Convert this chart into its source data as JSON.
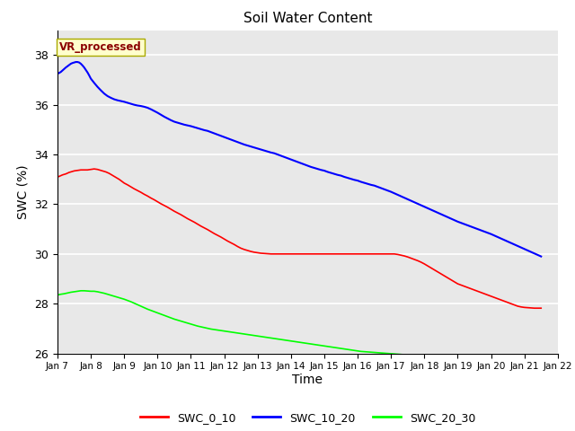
{
  "title": "Soil Water Content",
  "xlabel": "Time",
  "ylabel": "SWC (%)",
  "annotation": "VR_processed",
  "annotation_color": "#8B0000",
  "annotation_bg": "#FFFFCC",
  "ylim": [
    26,
    39
  ],
  "yticks": [
    26,
    28,
    30,
    32,
    34,
    36,
    38
  ],
  "x_labels": [
    "Jan 7",
    "Jan 8",
    "Jan 9",
    "Jan 10",
    "Jan 11",
    "Jan 12",
    "Jan 13",
    "Jan 14",
    "Jan 15",
    "Jan 16",
    "Jan 17",
    "Jan 18",
    "Jan 19",
    "Jan 20",
    "Jan 21",
    "Jan 22"
  ],
  "bg_color": "#E8E8E8",
  "fig_bg": "#FFFFFF",
  "line_colors": {
    "SWC_0_10": "#FF0000",
    "SWC_10_20": "#0000FF",
    "SWC_20_30": "#00FF00"
  },
  "SWC_0_10_x": [
    7.0,
    7.05,
    7.1,
    7.15,
    7.2,
    7.25,
    7.3,
    7.35,
    7.4,
    7.45,
    7.5,
    7.55,
    7.6,
    7.65,
    7.7,
    7.75,
    7.8,
    7.85,
    7.9,
    7.95,
    8.0,
    8.05,
    8.1,
    8.15,
    8.2,
    8.25,
    8.3,
    8.35,
    8.4,
    8.45,
    8.5,
    8.55,
    8.6,
    8.65,
    8.7,
    8.75,
    8.8,
    8.85,
    8.9,
    8.95,
    9.0,
    9.1,
    9.2,
    9.3,
    9.4,
    9.5,
    9.6,
    9.7,
    9.8,
    9.9,
    10.0,
    10.1,
    10.2,
    10.3,
    10.4,
    10.5,
    10.6,
    10.7,
    10.8,
    10.9,
    11.0,
    11.1,
    11.2,
    11.3,
    11.4,
    11.5,
    11.6,
    11.7,
    11.8,
    11.9,
    12.0,
    12.1,
    12.2,
    12.3,
    12.4,
    12.5,
    12.6,
    12.7,
    12.8,
    12.9,
    13.0,
    13.1,
    13.2,
    13.3,
    13.4,
    13.5,
    13.6,
    13.7,
    13.8,
    13.9,
    14.0,
    14.1,
    14.2,
    14.3,
    14.4,
    14.5,
    14.6,
    14.7,
    14.8,
    14.9,
    15.0,
    15.1,
    15.2,
    15.3,
    15.4,
    15.5,
    15.6,
    15.7,
    15.8,
    15.9,
    16.0,
    16.1,
    16.2,
    16.3,
    16.4,
    16.5,
    16.6,
    16.7,
    16.8,
    16.9,
    17.0,
    17.1,
    17.2,
    17.3,
    17.4,
    17.5,
    17.6,
    17.7,
    17.8,
    17.9,
    18.0,
    18.1,
    18.2,
    18.3,
    18.4,
    18.5,
    18.6,
    18.7,
    18.8,
    18.9,
    19.0,
    19.1,
    19.2,
    19.3,
    19.4,
    19.5,
    19.6,
    19.7,
    19.8,
    19.9,
    20.0,
    20.1,
    20.2,
    20.3,
    20.4,
    20.5,
    20.6,
    20.7,
    20.8,
    20.9,
    21.0,
    21.1,
    21.2,
    21.3,
    21.4,
    21.5
  ],
  "SWC_0_10_y": [
    33.1,
    33.12,
    33.15,
    33.18,
    33.2,
    33.22,
    33.25,
    33.28,
    33.3,
    33.32,
    33.34,
    33.35,
    33.36,
    33.37,
    33.38,
    33.38,
    33.38,
    33.38,
    33.38,
    33.39,
    33.4,
    33.41,
    33.42,
    33.41,
    33.4,
    33.38,
    33.36,
    33.34,
    33.32,
    33.3,
    33.27,
    33.24,
    33.2,
    33.16,
    33.12,
    33.08,
    33.04,
    33.0,
    32.95,
    32.9,
    32.85,
    32.78,
    32.7,
    32.62,
    32.55,
    32.48,
    32.4,
    32.33,
    32.25,
    32.18,
    32.1,
    32.02,
    31.95,
    31.88,
    31.8,
    31.72,
    31.65,
    31.58,
    31.5,
    31.42,
    31.35,
    31.28,
    31.2,
    31.12,
    31.05,
    30.98,
    30.9,
    30.82,
    30.75,
    30.68,
    30.6,
    30.52,
    30.45,
    30.38,
    30.3,
    30.23,
    30.18,
    30.14,
    30.1,
    30.07,
    30.05,
    30.03,
    30.02,
    30.01,
    30.0,
    30.0,
    30.0,
    30.0,
    30.0,
    30.0,
    30.0,
    30.0,
    30.0,
    30.0,
    30.0,
    30.0,
    30.0,
    30.0,
    30.0,
    30.0,
    30.0,
    30.0,
    30.0,
    30.0,
    30.0,
    30.0,
    30.0,
    30.0,
    30.0,
    30.0,
    30.0,
    30.0,
    30.0,
    30.0,
    30.0,
    30.0,
    30.0,
    30.0,
    30.0,
    30.0,
    30.0,
    30.0,
    29.98,
    29.95,
    29.92,
    29.88,
    29.83,
    29.78,
    29.73,
    29.67,
    29.6,
    29.52,
    29.44,
    29.36,
    29.28,
    29.2,
    29.12,
    29.04,
    28.96,
    28.88,
    28.8,
    28.75,
    28.7,
    28.65,
    28.6,
    28.55,
    28.5,
    28.45,
    28.4,
    28.35,
    28.3,
    28.25,
    28.2,
    28.15,
    28.1,
    28.05,
    28.0,
    27.95,
    27.9,
    27.87,
    27.85,
    27.84,
    27.83,
    27.82,
    27.82,
    27.82
  ],
  "SWC_10_20_x": [
    7.0,
    7.05,
    7.1,
    7.15,
    7.2,
    7.25,
    7.3,
    7.35,
    7.4,
    7.45,
    7.5,
    7.55,
    7.6,
    7.65,
    7.7,
    7.75,
    7.8,
    7.85,
    7.9,
    7.95,
    8.0,
    8.1,
    8.2,
    8.3,
    8.4,
    8.5,
    8.6,
    8.7,
    8.8,
    8.9,
    9.0,
    9.1,
    9.2,
    9.3,
    9.4,
    9.5,
    9.5,
    9.6,
    9.7,
    9.8,
    9.9,
    10.0,
    10.0,
    10.1,
    10.2,
    10.3,
    10.4,
    10.5,
    10.5,
    10.6,
    10.7,
    10.8,
    10.9,
    11.0,
    11.0,
    11.1,
    11.2,
    11.3,
    11.4,
    11.5,
    11.5,
    11.6,
    11.7,
    11.8,
    11.9,
    12.0,
    12.0,
    12.1,
    12.2,
    12.3,
    12.4,
    12.5,
    12.5,
    12.6,
    12.7,
    12.8,
    12.9,
    13.0,
    13.0,
    13.1,
    13.2,
    13.3,
    13.4,
    13.5,
    13.5,
    13.6,
    13.7,
    13.8,
    13.9,
    14.0,
    14.0,
    14.1,
    14.2,
    14.3,
    14.4,
    14.5,
    14.5,
    14.6,
    14.7,
    14.8,
    14.9,
    15.0,
    15.0,
    15.1,
    15.2,
    15.3,
    15.4,
    15.5,
    15.5,
    15.6,
    15.7,
    15.8,
    15.9,
    16.0,
    16.0,
    16.1,
    16.2,
    16.3,
    16.4,
    16.5,
    16.5,
    16.6,
    16.7,
    16.8,
    16.9,
    17.0,
    17.0,
    17.1,
    17.2,
    17.3,
    17.4,
    17.5,
    17.5,
    17.6,
    17.7,
    17.8,
    17.9,
    18.0,
    18.0,
    18.1,
    18.2,
    18.3,
    18.4,
    18.5,
    18.5,
    18.6,
    18.7,
    18.8,
    18.9,
    19.0,
    19.0,
    19.1,
    19.2,
    19.3,
    19.4,
    19.5,
    19.5,
    19.6,
    19.7,
    19.8,
    19.9,
    20.0,
    20.0,
    20.1,
    20.2,
    20.3,
    20.4,
    20.5,
    20.5,
    20.6,
    20.7,
    20.8,
    20.9,
    21.0,
    21.0,
    21.1,
    21.2,
    21.3,
    21.4,
    21.5
  ],
  "SWC_10_20_y": [
    37.25,
    37.28,
    37.32,
    37.38,
    37.44,
    37.5,
    37.55,
    37.6,
    37.65,
    37.68,
    37.7,
    37.72,
    37.72,
    37.7,
    37.65,
    37.58,
    37.5,
    37.4,
    37.3,
    37.18,
    37.05,
    36.88,
    36.72,
    36.58,
    36.45,
    36.35,
    36.28,
    36.22,
    36.18,
    36.15,
    36.12,
    36.08,
    36.04,
    36.0,
    35.97,
    35.95,
    35.95,
    35.92,
    35.88,
    35.82,
    35.75,
    35.68,
    35.68,
    35.6,
    35.52,
    35.45,
    35.38,
    35.32,
    35.32,
    35.28,
    35.24,
    35.2,
    35.17,
    35.14,
    35.14,
    35.1,
    35.06,
    35.02,
    34.98,
    34.95,
    34.95,
    34.9,
    34.85,
    34.8,
    34.75,
    34.7,
    34.7,
    34.65,
    34.6,
    34.55,
    34.5,
    34.45,
    34.45,
    34.4,
    34.36,
    34.32,
    34.28,
    34.24,
    34.24,
    34.2,
    34.16,
    34.12,
    34.08,
    34.05,
    34.05,
    34.0,
    33.95,
    33.9,
    33.85,
    33.8,
    33.8,
    33.75,
    33.7,
    33.65,
    33.6,
    33.55,
    33.55,
    33.5,
    33.46,
    33.42,
    33.38,
    33.35,
    33.35,
    33.3,
    33.26,
    33.22,
    33.18,
    33.15,
    33.15,
    33.1,
    33.06,
    33.02,
    32.98,
    32.95,
    32.95,
    32.9,
    32.86,
    32.82,
    32.78,
    32.75,
    32.75,
    32.7,
    32.65,
    32.6,
    32.55,
    32.5,
    32.5,
    32.44,
    32.38,
    32.32,
    32.26,
    32.2,
    32.2,
    32.14,
    32.08,
    32.02,
    31.96,
    31.9,
    31.9,
    31.84,
    31.78,
    31.72,
    31.66,
    31.6,
    31.6,
    31.54,
    31.48,
    31.42,
    31.36,
    31.3,
    31.3,
    31.25,
    31.2,
    31.15,
    31.1,
    31.05,
    31.05,
    31.0,
    30.95,
    30.9,
    30.85,
    30.8,
    30.8,
    30.74,
    30.68,
    30.62,
    30.56,
    30.5,
    30.5,
    30.44,
    30.38,
    30.32,
    30.26,
    30.2,
    30.2,
    30.14,
    30.08,
    30.02,
    29.96,
    29.9
  ],
  "SWC_20_30_x": [
    7.0,
    7.1,
    7.2,
    7.3,
    7.4,
    7.5,
    7.6,
    7.7,
    7.8,
    7.9,
    8.0,
    8.1,
    8.2,
    8.3,
    8.4,
    8.5,
    8.6,
    8.7,
    8.8,
    8.9,
    9.0,
    9.1,
    9.2,
    9.3,
    9.4,
    9.5,
    9.6,
    9.7,
    9.8,
    9.9,
    10.0,
    10.1,
    10.2,
    10.3,
    10.4,
    10.5,
    10.6,
    10.7,
    10.8,
    10.9,
    11.0,
    11.1,
    11.2,
    11.3,
    11.4,
    11.5,
    11.6,
    11.7,
    11.8,
    11.9,
    12.0,
    12.1,
    12.2,
    12.3,
    12.4,
    12.5,
    12.6,
    12.7,
    12.8,
    12.9,
    13.0,
    13.1,
    13.2,
    13.3,
    13.4,
    13.5,
    13.6,
    13.7,
    13.8,
    13.9,
    14.0,
    14.1,
    14.2,
    14.3,
    14.4,
    14.5,
    14.6,
    14.7,
    14.8,
    14.9,
    15.0,
    15.1,
    15.2,
    15.3,
    15.4,
    15.5,
    15.6,
    15.7,
    15.8,
    15.9,
    16.0,
    16.1,
    16.2,
    16.3,
    16.4,
    16.5,
    16.6,
    16.7,
    16.8,
    16.9,
    17.0,
    17.1,
    17.2,
    17.3,
    17.4,
    17.5,
    17.6,
    17.7,
    17.8,
    17.9,
    18.0,
    18.1,
    18.2,
    18.3,
    18.4,
    18.5,
    18.6,
    18.7,
    18.8,
    18.9,
    19.0,
    19.1,
    19.2,
    19.3,
    19.4,
    19.5,
    19.6,
    19.7,
    19.8,
    19.9,
    20.0,
    20.1,
    20.2,
    20.3,
    20.4,
    20.5,
    20.6,
    20.7,
    20.8,
    20.9,
    21.0,
    21.1,
    21.2,
    21.3,
    21.4,
    21.5
  ],
  "SWC_20_30_y": [
    28.35,
    28.38,
    28.4,
    28.43,
    28.46,
    28.48,
    28.5,
    28.52,
    28.52,
    28.51,
    28.5,
    28.5,
    28.48,
    28.45,
    28.42,
    28.38,
    28.34,
    28.3,
    28.26,
    28.22,
    28.18,
    28.13,
    28.08,
    28.02,
    27.96,
    27.9,
    27.84,
    27.78,
    27.73,
    27.68,
    27.63,
    27.58,
    27.53,
    27.48,
    27.43,
    27.38,
    27.34,
    27.3,
    27.26,
    27.22,
    27.18,
    27.14,
    27.1,
    27.07,
    27.04,
    27.01,
    26.98,
    26.96,
    26.94,
    26.92,
    26.9,
    26.88,
    26.86,
    26.84,
    26.82,
    26.8,
    26.78,
    26.76,
    26.74,
    26.72,
    26.7,
    26.68,
    26.66,
    26.64,
    26.62,
    26.6,
    26.58,
    26.56,
    26.54,
    26.52,
    26.5,
    26.48,
    26.46,
    26.44,
    26.42,
    26.4,
    26.38,
    26.36,
    26.34,
    26.32,
    26.3,
    26.28,
    26.26,
    26.24,
    26.22,
    26.2,
    26.18,
    26.16,
    26.14,
    26.12,
    26.1,
    26.08,
    26.07,
    26.06,
    26.05,
    26.04,
    26.03,
    26.02,
    26.01,
    26.0,
    25.99,
    25.98,
    25.97,
    25.96,
    25.95,
    25.94,
    25.93,
    25.92,
    25.91,
    25.9,
    25.89,
    25.88,
    25.87,
    25.86,
    25.85,
    25.84,
    25.83,
    25.82,
    25.81,
    25.8,
    25.79,
    25.78,
    25.77,
    25.76,
    25.75,
    25.74,
    25.73,
    25.72,
    25.71,
    25.7,
    25.69,
    25.68,
    25.67,
    25.66,
    25.65,
    25.64,
    25.63,
    25.62,
    25.61,
    25.6,
    25.59,
    25.58,
    25.57,
    25.56,
    25.55,
    25.55
  ]
}
